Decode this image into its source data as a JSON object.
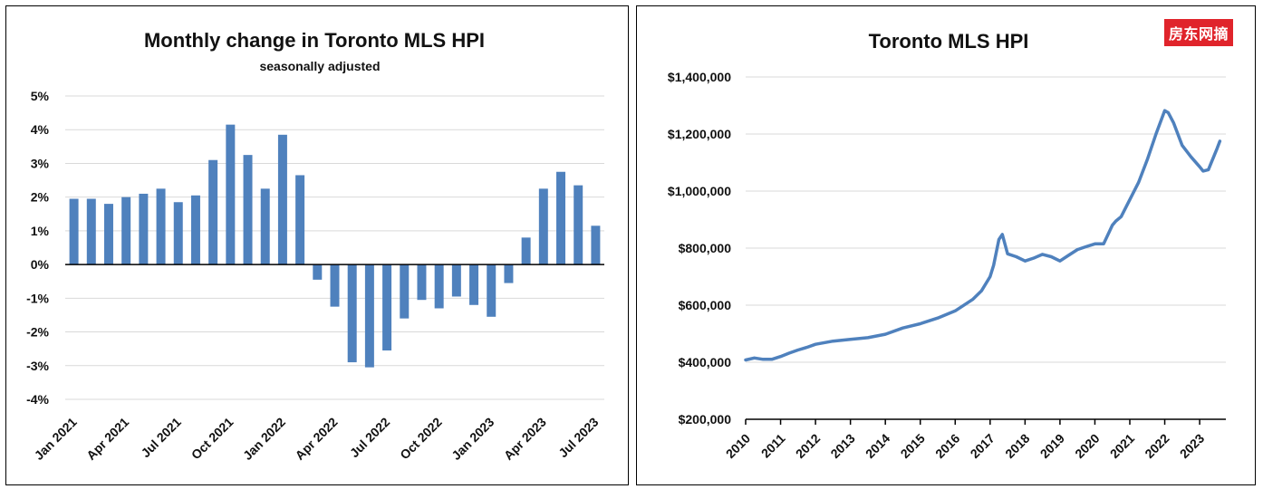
{
  "chart_data": [
    {
      "type": "bar",
      "title": "Monthly change in Toronto MLS HPI",
      "subtitle": "seasonally adjusted",
      "xlabel": "",
      "ylabel": "",
      "ylim": [
        -4,
        5
      ],
      "y_ticks": [
        "5%",
        "4%",
        "3%",
        "2%",
        "1%",
        "0%",
        "-1%",
        "-2%",
        "-3%",
        "-4%"
      ],
      "x_tick_labels": [
        "Jan 2021",
        "Apr 2021",
        "Jul 2021",
        "Oct 2021",
        "Jan 2022",
        "Apr 2022",
        "Jul 2022",
        "Oct 2022",
        "Jan 2023",
        "Apr 2023",
        "Jul 2023"
      ],
      "categories": [
        "Jan 2021",
        "Feb 2021",
        "Mar 2021",
        "Apr 2021",
        "May 2021",
        "Jun 2021",
        "Jul 2021",
        "Aug 2021",
        "Sep 2021",
        "Oct 2021",
        "Nov 2021",
        "Dec 2021",
        "Jan 2022",
        "Feb 2022",
        "Mar 2022",
        "Apr 2022",
        "May 2022",
        "Jun 2022",
        "Jul 2022",
        "Aug 2022",
        "Sep 2022",
        "Oct 2022",
        "Nov 2022",
        "Dec 2022",
        "Jan 2023",
        "Feb 2023",
        "Mar 2023",
        "Apr 2023",
        "May 2023",
        "Jun 2023",
        "Jul 2023"
      ],
      "values": [
        1.95,
        1.95,
        1.8,
        2.0,
        2.1,
        2.25,
        1.85,
        2.05,
        3.1,
        4.15,
        3.25,
        2.25,
        3.85,
        2.65,
        -0.45,
        -1.25,
        -2.9,
        -3.05,
        -2.55,
        -1.6,
        -1.05,
        -1.3,
        -0.95,
        -1.2,
        -1.55,
        -0.55,
        0.8,
        2.25,
        2.75,
        2.35,
        1.15
      ],
      "grid": true,
      "color": "#4f81bd"
    },
    {
      "type": "line",
      "title": "Toronto MLS HPI",
      "xlabel": "",
      "ylabel": "",
      "ylim": [
        200000,
        1400000
      ],
      "xlim": [
        2010,
        2023.75
      ],
      "y_ticks": [
        "$1,400,000",
        "$1,200,000",
        "$1,000,000",
        "$800,000",
        "$600,000",
        "$400,000",
        "$200,000"
      ],
      "x_tick_labels": [
        "2010",
        "2011",
        "2012",
        "2013",
        "2014",
        "2015",
        "2016",
        "2017",
        "2018",
        "2019",
        "2020",
        "2021",
        "2022",
        "2023"
      ],
      "grid": true,
      "color": "#4f81bd",
      "x": [
        2010.0,
        2010.25,
        2010.5,
        2010.75,
        2011.0,
        2011.25,
        2011.5,
        2011.75,
        2012.0,
        2012.5,
        2013.0,
        2013.5,
        2014.0,
        2014.5,
        2015.0,
        2015.5,
        2016.0,
        2016.5,
        2016.75,
        2017.0,
        2017.1,
        2017.25,
        2017.35,
        2017.5,
        2017.75,
        2018.0,
        2018.25,
        2018.5,
        2018.75,
        2019.0,
        2019.25,
        2019.5,
        2019.75,
        2020.0,
        2020.25,
        2020.5,
        2020.6,
        2020.75,
        2021.0,
        2021.25,
        2021.5,
        2021.75,
        2022.0,
        2022.1,
        2022.25,
        2022.5,
        2022.75,
        2023.0,
        2023.1,
        2023.25,
        2023.5,
        2023.58
      ],
      "series": [
        {
          "values": [
            408000,
            415000,
            410000,
            410000,
            420000,
            432000,
            443000,
            452000,
            463000,
            474000,
            480000,
            486000,
            498000,
            520000,
            535000,
            555000,
            580000,
            620000,
            650000,
            700000,
            740000,
            830000,
            848000,
            780000,
            770000,
            755000,
            765000,
            778000,
            770000,
            755000,
            775000,
            795000,
            805000,
            815000,
            815000,
            880000,
            895000,
            910000,
            970000,
            1030000,
            1110000,
            1200000,
            1282000,
            1275000,
            1240000,
            1160000,
            1120000,
            1085000,
            1070000,
            1075000,
            1150000,
            1175000
          ]
        }
      ]
    }
  ],
  "watermark": "房东网摘"
}
